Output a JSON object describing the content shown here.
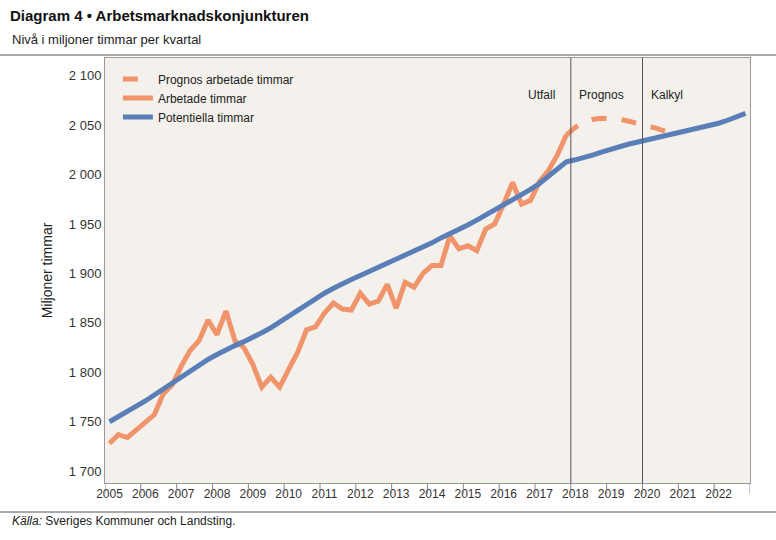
{
  "chart_data": {
    "type": "line",
    "title": "Diagram 4 • Arbetsmarknadskonjunkturen",
    "subtitle": "Nivå i miljoner timmar per kvartal",
    "y_label": "Miljoner timmar",
    "source": {
      "label": "Källa:",
      "text": "Sveriges Kommuner och Landsting."
    },
    "categories": [
      "2005",
      null,
      null,
      null,
      "2006",
      null,
      null,
      null,
      "2007",
      null,
      null,
      null,
      "2008",
      null,
      null,
      null,
      "2009",
      null,
      null,
      null,
      "2010",
      null,
      null,
      null,
      "2011",
      null,
      null,
      null,
      "2012",
      null,
      null,
      null,
      "2013",
      null,
      null,
      null,
      "2014",
      null,
      null,
      null,
      "2015",
      null,
      null,
      null,
      "2016",
      null,
      null,
      null,
      "2017",
      null,
      null,
      null,
      "2018",
      null,
      null,
      null,
      "2019",
      null,
      null,
      null,
      "2020",
      null,
      null,
      null,
      "2021",
      null,
      null,
      null,
      "2022",
      null,
      null,
      null
    ],
    "series": [
      {
        "name": "Prognos arbetade timmar",
        "color": "#f0956b",
        "line_style": "dash",
        "values": [
          null,
          null,
          null,
          null,
          null,
          null,
          null,
          null,
          null,
          null,
          null,
          null,
          null,
          null,
          null,
          null,
          null,
          null,
          null,
          null,
          null,
          null,
          null,
          null,
          null,
          null,
          null,
          null,
          null,
          null,
          null,
          null,
          null,
          null,
          null,
          null,
          null,
          null,
          null,
          null,
          null,
          null,
          null,
          null,
          null,
          null,
          null,
          null,
          null,
          null,
          null,
          2040,
          2048,
          2053,
          2056,
          2057,
          2057,
          2056,
          2054,
          2052,
          2050,
          2047,
          2044,
          2042,
          null,
          null,
          null,
          null,
          null,
          null,
          null,
          null
        ]
      },
      {
        "name": "Arbetade timmar",
        "color": "#f0956b",
        "line_style": "solid",
        "values": [
          1728,
          1737,
          1734,
          1742,
          1750,
          1757,
          1778,
          1787,
          1806,
          1822,
          1832,
          1853,
          1838,
          1862,
          1832,
          1825,
          1808,
          1785,
          1795,
          1785,
          1803,
          1820,
          1843,
          1846,
          1860,
          1870,
          1864,
          1863,
          1880,
          1869,
          1872,
          1889,
          1865,
          1891,
          1886,
          1900,
          1908,
          1908,
          1938,
          1925,
          1928,
          1923,
          1945,
          1950,
          1970,
          1992,
          1970,
          1974,
          1993,
          2004,
          2020,
          2040,
          null,
          null,
          null,
          null,
          null,
          null,
          null,
          null,
          null,
          null,
          null,
          null,
          null,
          null,
          null,
          null,
          null,
          null,
          null,
          null
        ]
      },
      {
        "name": "Potentiella timmar",
        "color": "#5a7fb8",
        "line_style": "solid",
        "values": [
          1750,
          1755,
          1760,
          1765,
          1771,
          1777,
          1783,
          1789,
          1796,
          1802,
          1808,
          1813,
          1818,
          1823,
          1827,
          1831,
          1835,
          1840,
          1845,
          1851,
          1857,
          1863,
          1869,
          1875,
          1880,
          1885,
          1890,
          1894,
          1898,
          1902,
          1906,
          1910,
          1914,
          1918,
          1922,
          1927,
          1931,
          1936,
          1940,
          1945,
          1949,
          1954,
          1959,
          1964,
          1969,
          1974,
          1979,
          1985,
          1991,
          1998,
          2006,
          2013,
          2015,
          2017,
          2020,
          2023,
          2026,
          2029,
          2031,
          2033,
          2035,
          2037,
          2039,
          2041,
          2043,
          2045,
          2047,
          2049,
          2052,
          2055,
          2058,
          2062
        ]
      }
    ],
    "ylim": [
      1688,
      2118
    ],
    "yticks": [
      {
        "value": 1700,
        "label": "1 700"
      },
      {
        "value": 1750,
        "label": "1 750"
      },
      {
        "value": 1800,
        "label": "1 800"
      },
      {
        "value": 1850,
        "label": "1 850"
      },
      {
        "value": 1900,
        "label": "1 900"
      },
      {
        "value": 1950,
        "label": "1 950"
      },
      {
        "value": 2000,
        "label": "2 000"
      },
      {
        "value": 2050,
        "label": "2 050"
      },
      {
        "value": 2100,
        "label": "2 100"
      }
    ],
    "grid": false,
    "legend": "upper left",
    "annotations": [
      {
        "text": "Utfall",
        "from": 0,
        "to": 51
      },
      {
        "text": "Prognos",
        "from": 52,
        "to": 59
      },
      {
        "text": "Kalkyl",
        "from": 60,
        "to": 71
      }
    ]
  }
}
